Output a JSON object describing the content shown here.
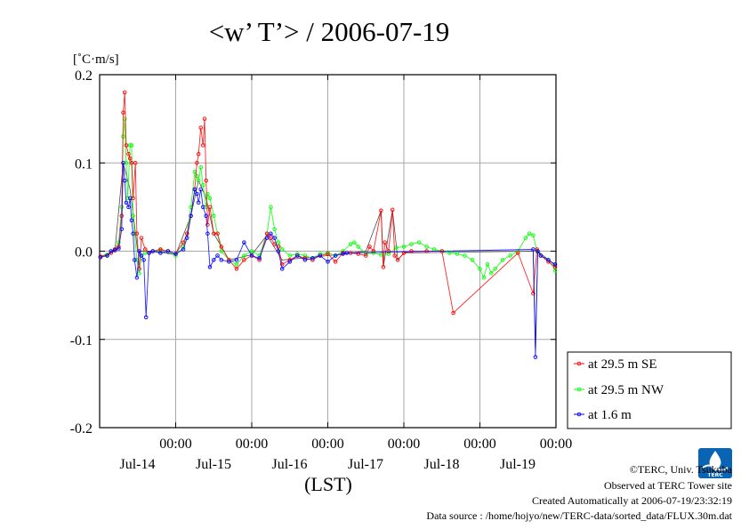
{
  "chart_data": {
    "type": "line",
    "title": "<w’ T’> / 2006-07-19",
    "ylabel": "[˚C·m/s]",
    "xlabel": "(LST)",
    "ylim": [
      -0.2,
      0.2
    ],
    "xlim": [
      -1.0,
      5.0
    ],
    "x_unit": "days since 2006-07-14 00:00 LST",
    "y_ticks": [
      "0.2",
      "0.1",
      "0.0",
      "-0.1",
      "-0.2"
    ],
    "y_tick_values": [
      0.2,
      0.1,
      0.0,
      -0.1,
      -0.2
    ],
    "x_ticks": [
      {
        "x": 0,
        "time": "00:00",
        "date": "Jul-14"
      },
      {
        "x": 1,
        "time": "00:00",
        "date": "Jul-15"
      },
      {
        "x": 2,
        "time": "00:00",
        "date": "Jul-16"
      },
      {
        "x": 3,
        "time": "00:00",
        "date": "Jul-17"
      },
      {
        "x": 4,
        "time": "00:00",
        "date": "Jul-18"
      },
      {
        "x": 5,
        "time": "00:00",
        "date": "Jul-19"
      }
    ],
    "grid": true,
    "legend_position": "right",
    "series": [
      {
        "name": "at 29.5 m SE",
        "color": "#ff0000",
        "points": [
          [
            -0.99,
            -0.006
          ],
          [
            -0.9,
            -0.005
          ],
          [
            -0.85,
            -0.002
          ],
          [
            -0.8,
            0.002
          ],
          [
            -0.75,
            0.005
          ],
          [
            -0.71,
            0.04
          ],
          [
            -0.69,
            0.157
          ],
          [
            -0.67,
            0.18
          ],
          [
            -0.65,
            0.12
          ],
          [
            -0.62,
            0.11
          ],
          [
            -0.6,
            0.105
          ],
          [
            -0.58,
            0.1
          ],
          [
            -0.56,
            0.06
          ],
          [
            -0.53,
            0.1
          ],
          [
            -0.51,
            0.02
          ],
          [
            -0.48,
            -0.02
          ],
          [
            -0.45,
            0.015
          ],
          [
            -0.4,
            0.002
          ],
          [
            -0.35,
            -0.002
          ],
          [
            -0.3,
            0.0
          ],
          [
            -0.2,
            0.002
          ],
          [
            -0.1,
            0.0
          ],
          [
            0.0,
            -0.003
          ],
          [
            0.1,
            0.01
          ],
          [
            0.15,
            0.02
          ],
          [
            0.2,
            0.04
          ],
          [
            0.25,
            0.07
          ],
          [
            0.28,
            0.1
          ],
          [
            0.3,
            0.11
          ],
          [
            0.33,
            0.14
          ],
          [
            0.36,
            0.12
          ],
          [
            0.38,
            0.15
          ],
          [
            0.4,
            0.08
          ],
          [
            0.42,
            0.03
          ],
          [
            0.45,
            0.05
          ],
          [
            0.5,
            0.02
          ],
          [
            0.55,
            0.02
          ],
          [
            0.6,
            0.005
          ],
          [
            0.7,
            -0.01
          ],
          [
            0.8,
            -0.02
          ],
          [
            0.9,
            -0.01
          ],
          [
            1.0,
            -0.005
          ],
          [
            1.1,
            -0.01
          ],
          [
            1.2,
            0.02
          ],
          [
            1.25,
            0.015
          ],
          [
            1.3,
            0.008
          ],
          [
            1.35,
            0.005
          ],
          [
            1.4,
            -0.015
          ],
          [
            1.5,
            -0.01
          ],
          [
            1.6,
            -0.005
          ],
          [
            1.7,
            -0.008
          ],
          [
            1.8,
            -0.01
          ],
          [
            1.9,
            -0.005
          ],
          [
            2.0,
            -0.003
          ],
          [
            2.1,
            -0.012
          ],
          [
            2.2,
            -0.002
          ],
          [
            2.3,
            -0.002
          ],
          [
            2.4,
            -0.003
          ],
          [
            2.5,
            -0.005
          ],
          [
            2.55,
            0.005
          ],
          [
            2.6,
            0.0
          ],
          [
            2.7,
            0.046
          ],
          [
            2.73,
            -0.018
          ],
          [
            2.75,
            0.01
          ],
          [
            2.8,
            0.0
          ],
          [
            2.85,
            0.047
          ],
          [
            2.88,
            -0.005
          ],
          [
            2.92,
            -0.01
          ],
          [
            3.0,
            -0.002
          ],
          [
            3.1,
            0.0
          ],
          [
            3.3,
            0.0
          ],
          [
            3.5,
            0.0
          ],
          [
            3.65,
            -0.07
          ],
          [
            4.5,
            -0.002
          ],
          [
            4.7,
            -0.048
          ],
          [
            4.75,
            0.002
          ],
          [
            4.8,
            -0.005
          ],
          [
            4.9,
            -0.012
          ],
          [
            4.99,
            -0.018
          ]
        ]
      },
      {
        "name": "at 29.5 m NW",
        "color": "#00ff00",
        "points": [
          [
            -0.99,
            -0.006
          ],
          [
            -0.9,
            -0.004
          ],
          [
            -0.85,
            0.0
          ],
          [
            -0.8,
            0.002
          ],
          [
            -0.75,
            0.01
          ],
          [
            -0.71,
            0.05
          ],
          [
            -0.69,
            0.13
          ],
          [
            -0.67,
            0.15
          ],
          [
            -0.65,
            0.1
          ],
          [
            -0.63,
            0.06
          ],
          [
            -0.6,
            0.12
          ],
          [
            -0.58,
            0.12
          ],
          [
            -0.56,
            0.04
          ],
          [
            -0.54,
            0.02
          ],
          [
            -0.51,
            -0.01
          ],
          [
            -0.48,
            -0.025
          ],
          [
            -0.45,
            -0.005
          ],
          [
            -0.4,
            -0.002
          ],
          [
            -0.3,
            0.0
          ],
          [
            -0.2,
            0.001
          ],
          [
            -0.1,
            0.0
          ],
          [
            0.0,
            -0.005
          ],
          [
            0.1,
            0.005
          ],
          [
            0.15,
            0.02
          ],
          [
            0.2,
            0.05
          ],
          [
            0.25,
            0.09
          ],
          [
            0.28,
            0.085
          ],
          [
            0.3,
            0.08
          ],
          [
            0.33,
            0.095
          ],
          [
            0.36,
            0.075
          ],
          [
            0.4,
            0.05
          ],
          [
            0.42,
            0.065
          ],
          [
            0.45,
            0.06
          ],
          [
            0.5,
            0.04
          ],
          [
            0.55,
            0.02
          ],
          [
            0.6,
            0.0
          ],
          [
            0.7,
            -0.01
          ],
          [
            0.8,
            -0.015
          ],
          [
            0.9,
            -0.005
          ],
          [
            1.0,
            0.0
          ],
          [
            1.1,
            -0.005
          ],
          [
            1.2,
            0.02
          ],
          [
            1.25,
            0.05
          ],
          [
            1.3,
            0.025
          ],
          [
            1.35,
            0.01
          ],
          [
            1.4,
            0.002
          ],
          [
            1.5,
            -0.005
          ],
          [
            1.6,
            -0.003
          ],
          [
            1.7,
            -0.005
          ],
          [
            1.8,
            -0.008
          ],
          [
            1.9,
            -0.003
          ],
          [
            2.0,
            -0.002
          ],
          [
            2.1,
            -0.005
          ],
          [
            2.2,
            0.0
          ],
          [
            2.3,
            0.008
          ],
          [
            2.35,
            0.01
          ],
          [
            2.4,
            0.005
          ],
          [
            2.5,
            -0.003
          ],
          [
            2.6,
            -0.002
          ],
          [
            2.7,
            -0.004
          ],
          [
            2.8,
            -0.003
          ],
          [
            2.9,
            0.004
          ],
          [
            3.0,
            0.005
          ],
          [
            3.1,
            0.008
          ],
          [
            3.2,
            0.01
          ],
          [
            3.3,
            0.005
          ],
          [
            3.4,
            0.002
          ],
          [
            3.5,
            0.0
          ],
          [
            3.6,
            -0.002
          ],
          [
            3.7,
            -0.003
          ],
          [
            3.8,
            -0.005
          ],
          [
            3.9,
            -0.01
          ],
          [
            4.0,
            -0.02
          ],
          [
            4.05,
            -0.03
          ],
          [
            4.1,
            -0.015
          ],
          [
            4.15,
            -0.025
          ],
          [
            4.2,
            -0.02
          ],
          [
            4.3,
            -0.01
          ],
          [
            4.4,
            -0.005
          ],
          [
            4.5,
            0.0
          ],
          [
            4.6,
            0.015
          ],
          [
            4.65,
            0.02
          ],
          [
            4.7,
            0.018
          ],
          [
            4.75,
            0.0
          ],
          [
            4.8,
            -0.005
          ],
          [
            4.9,
            -0.01
          ],
          [
            4.99,
            -0.022
          ]
        ]
      },
      {
        "name": "at 1.6 m",
        "color": "#0000ff",
        "points": [
          [
            -0.99,
            -0.007
          ],
          [
            -0.9,
            -0.005
          ],
          [
            -0.85,
            0.0
          ],
          [
            -0.8,
            0.001
          ],
          [
            -0.75,
            0.003
          ],
          [
            -0.71,
            0.025
          ],
          [
            -0.69,
            0.1
          ],
          [
            -0.67,
            0.08
          ],
          [
            -0.65,
            0.055
          ],
          [
            -0.62,
            0.05
          ],
          [
            -0.6,
            0.06
          ],
          [
            -0.58,
            0.035
          ],
          [
            -0.56,
            0.02
          ],
          [
            -0.54,
            -0.01
          ],
          [
            -0.51,
            -0.03
          ],
          [
            -0.48,
            0.0
          ],
          [
            -0.45,
            -0.005
          ],
          [
            -0.42,
            -0.01
          ],
          [
            -0.39,
            -0.075
          ],
          [
            -0.35,
            -0.002
          ],
          [
            -0.3,
            0.0
          ],
          [
            -0.2,
            -0.002
          ],
          [
            -0.1,
            0.0
          ],
          [
            0.0,
            -0.003
          ],
          [
            0.1,
            0.002
          ],
          [
            0.15,
            0.015
          ],
          [
            0.2,
            0.04
          ],
          [
            0.25,
            0.07
          ],
          [
            0.28,
            0.065
          ],
          [
            0.3,
            0.055
          ],
          [
            0.33,
            0.07
          ],
          [
            0.36,
            0.05
          ],
          [
            0.4,
            0.04
          ],
          [
            0.42,
            0.02
          ],
          [
            0.45,
            -0.018
          ],
          [
            0.5,
            -0.01
          ],
          [
            0.55,
            -0.005
          ],
          [
            0.6,
            -0.01
          ],
          [
            0.7,
            -0.012
          ],
          [
            0.8,
            -0.01
          ],
          [
            0.9,
            0.01
          ],
          [
            1.0,
            -0.005
          ],
          [
            1.1,
            -0.008
          ],
          [
            1.2,
            0.015
          ],
          [
            1.25,
            0.02
          ],
          [
            1.3,
            0.015
          ],
          [
            1.35,
            0.0
          ],
          [
            1.4,
            -0.02
          ],
          [
            1.5,
            -0.012
          ],
          [
            1.6,
            -0.005
          ],
          [
            1.7,
            -0.01
          ],
          [
            1.8,
            -0.008
          ],
          [
            1.9,
            -0.005
          ],
          [
            2.0,
            -0.012
          ],
          [
            2.1,
            -0.005
          ],
          [
            2.2,
            -0.003
          ],
          [
            2.25,
            -0.002
          ],
          [
            4.7,
            0.002
          ],
          [
            4.73,
            -0.12
          ],
          [
            4.76,
            0.0
          ],
          [
            4.8,
            -0.005
          ],
          [
            4.9,
            -0.01
          ],
          [
            4.99,
            -0.015
          ]
        ]
      },
      {
        "name": "",
        "color": "#000000",
        "points": [
          [
            -0.99,
            -0.006
          ],
          [
            -0.8,
            0.0
          ],
          [
            -0.69,
            0.1
          ],
          [
            -0.6,
            0.07
          ],
          [
            -0.5,
            0.0
          ],
          [
            -0.3,
            0.0
          ],
          [
            0.0,
            -0.004
          ],
          [
            0.2,
            0.04
          ],
          [
            0.3,
            0.08
          ],
          [
            0.4,
            0.06
          ],
          [
            0.5,
            0.02
          ],
          [
            0.7,
            -0.01
          ],
          [
            1.0,
            -0.004
          ],
          [
            1.2,
            0.018
          ],
          [
            1.4,
            -0.01
          ],
          [
            2.0,
            -0.005
          ],
          [
            2.5,
            0.0
          ],
          [
            2.7,
            0.046
          ],
          [
            2.73,
            -0.018
          ],
          [
            2.85,
            0.047
          ],
          [
            2.92,
            -0.01
          ],
          [
            3.0,
            -0.002
          ],
          [
            4.7,
            0.0
          ],
          [
            4.73,
            -0.11
          ],
          [
            4.76,
            0.0
          ],
          [
            4.99,
            -0.016
          ]
        ]
      }
    ]
  },
  "footer": {
    "copyright": "©TERC, Univ. Tsukuba",
    "observed": "Observed at TERC Tower site",
    "created": "Created Automatically at 2006-07-19/23:32:19",
    "source": "Data source : /home/hojyo/new/TERC-data/sorted_data/FLUX.30m.dat"
  },
  "logo": {
    "icon": "terc-logo-icon",
    "text": "TERC"
  }
}
